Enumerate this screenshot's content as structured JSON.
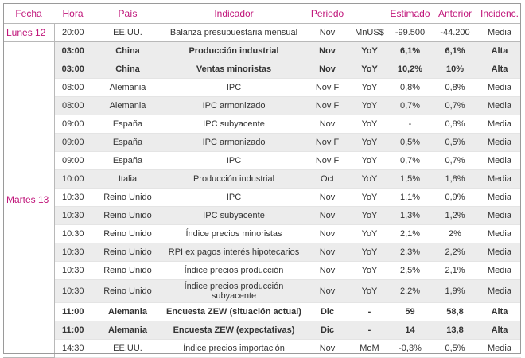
{
  "headers": [
    "Fecha",
    "Hora",
    "País",
    "Indicador",
    "Periodo",
    "",
    "Estimado",
    "Anterior",
    "Incidenc."
  ],
  "groups": [
    {
      "date": "Lunes 12",
      "rows": [
        {
          "hora": "20:00",
          "pais": "EE.UU.",
          "indicador": "Balanza presupuestaria mensual",
          "periodo": "Nov",
          "unidad": "MnUS$",
          "estimado": "-99.500",
          "anterior": "-44.200",
          "incidencia": "Media",
          "bold": false,
          "shade": false
        }
      ]
    },
    {
      "date": "Martes 13",
      "rows": [
        {
          "hora": "03:00",
          "pais": "China",
          "indicador": "Producción industrial",
          "periodo": "Nov",
          "unidad": "YoY",
          "estimado": "6,1%",
          "anterior": "6,1%",
          "incidencia": "Alta",
          "bold": true,
          "shade": true
        },
        {
          "hora": "03:00",
          "pais": "China",
          "indicador": "Ventas minoristas",
          "periodo": "Nov",
          "unidad": "YoY",
          "estimado": "10,2%",
          "anterior": "10%",
          "incidencia": "Alta",
          "bold": true,
          "shade": true
        },
        {
          "hora": "08:00",
          "pais": "Alemania",
          "indicador": "IPC",
          "periodo": "Nov F",
          "unidad": "YoY",
          "estimado": "0,8%",
          "anterior": "0,8%",
          "incidencia": "Media",
          "bold": false,
          "shade": false
        },
        {
          "hora": "08:00",
          "pais": "Alemania",
          "indicador": "IPC armonizado",
          "periodo": "Nov F",
          "unidad": "YoY",
          "estimado": "0,7%",
          "anterior": "0,7%",
          "incidencia": "Media",
          "bold": false,
          "shade": true
        },
        {
          "hora": "09:00",
          "pais": "España",
          "indicador": "IPC subyacente",
          "periodo": "Nov",
          "unidad": "YoY",
          "estimado": "-",
          "anterior": "0,8%",
          "incidencia": "Media",
          "bold": false,
          "shade": false
        },
        {
          "hora": "09:00",
          "pais": "España",
          "indicador": "IPC armonizado",
          "periodo": "Nov F",
          "unidad": "YoY",
          "estimado": "0,5%",
          "anterior": "0,5%",
          "incidencia": "Media",
          "bold": false,
          "shade": true
        },
        {
          "hora": "09:00",
          "pais": "España",
          "indicador": "IPC",
          "periodo": "Nov F",
          "unidad": "YoY",
          "estimado": "0,7%",
          "anterior": "0,7%",
          "incidencia": "Media",
          "bold": false,
          "shade": false
        },
        {
          "hora": "10:00",
          "pais": "Italia",
          "indicador": "Producción industrial",
          "periodo": "Oct",
          "unidad": "YoY",
          "estimado": "1,5%",
          "anterior": "1,8%",
          "incidencia": "Media",
          "bold": false,
          "shade": true
        },
        {
          "hora": "10:30",
          "pais": "Reino Unido",
          "indicador": "IPC",
          "periodo": "Nov",
          "unidad": "YoY",
          "estimado": "1,1%",
          "anterior": "0,9%",
          "incidencia": "Media",
          "bold": false,
          "shade": false
        },
        {
          "hora": "10:30",
          "pais": "Reino Unido",
          "indicador": "IPC subyacente",
          "periodo": "Nov",
          "unidad": "YoY",
          "estimado": "1,3%",
          "anterior": "1,2%",
          "incidencia": "Media",
          "bold": false,
          "shade": true
        },
        {
          "hora": "10:30",
          "pais": "Reino Unido",
          "indicador": "Índice precios minoristas",
          "periodo": "Nov",
          "unidad": "YoY",
          "estimado": "2,1%",
          "anterior": "2%",
          "incidencia": "Media",
          "bold": false,
          "shade": false
        },
        {
          "hora": "10:30",
          "pais": "Reino Unido",
          "indicador": "RPI ex pagos interés hipotecarios",
          "periodo": "Nov",
          "unidad": "YoY",
          "estimado": "2,3%",
          "anterior": "2,2%",
          "incidencia": "Media",
          "bold": false,
          "shade": true
        },
        {
          "hora": "10:30",
          "pais": "Reino Unido",
          "indicador": "Índice precios producción",
          "periodo": "Nov",
          "unidad": "YoY",
          "estimado": "2,5%",
          "anterior": "2,1%",
          "incidencia": "Media",
          "bold": false,
          "shade": false
        },
        {
          "hora": "10:30",
          "pais": "Reino Unido",
          "indicador": "Índice precios producción subyacente",
          "periodo": "Nov",
          "unidad": "YoY",
          "estimado": "2,2%",
          "anterior": "1,9%",
          "incidencia": "Media",
          "bold": false,
          "shade": true,
          "tall": true
        },
        {
          "hora": "11:00",
          "pais": "Alemania",
          "indicador": "Encuesta ZEW (situación actual)",
          "periodo": "Dic",
          "unidad": "-",
          "estimado": "59",
          "anterior": "58,8",
          "incidencia": "Alta",
          "bold": true,
          "shade": false
        },
        {
          "hora": "11:00",
          "pais": "Alemania",
          "indicador": "Encuesta ZEW (expectativas)",
          "periodo": "Dic",
          "unidad": "-",
          "estimado": "14",
          "anterior": "13,8",
          "incidencia": "Alta",
          "bold": true,
          "shade": true
        },
        {
          "hora": "14:30",
          "pais": "EE.UU.",
          "indicador": "Índice precios importación",
          "periodo": "Nov",
          "unidad": "MoM",
          "estimado": "-0,3%",
          "anterior": "0,5%",
          "incidencia": "Media",
          "bold": false,
          "shade": false
        }
      ]
    }
  ],
  "colors": {
    "accent": "#c0157a",
    "shade": "#ececec",
    "border": "#b8b8b8"
  }
}
